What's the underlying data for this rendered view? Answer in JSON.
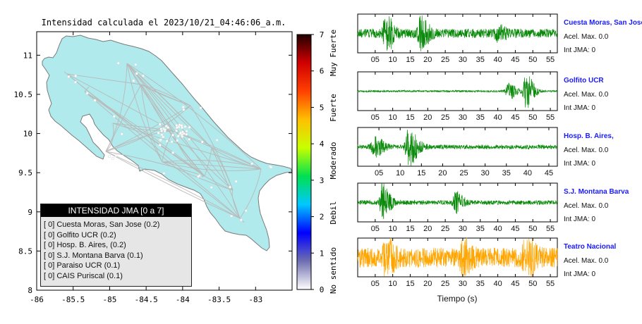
{
  "title": "Intensidad calculada el 2023/10/21_04:46:06_a.m.",
  "map": {
    "x_ticks": [
      "-86",
      "-85.5",
      "-85",
      "-84.5",
      "-84",
      "-83.5",
      "-83"
    ],
    "y_ticks": [
      "11",
      "10.5",
      "10",
      "9.5",
      "9",
      "8.5",
      "8"
    ],
    "xlim": [
      -86,
      -82.5
    ],
    "ylim": [
      8,
      11.3
    ],
    "land_color": "#b0eaec",
    "border_color": "#7a7a7a",
    "road_color": "#b9b9b9"
  },
  "legend": {
    "title": "INTENSIDAD JMA [0 a 7]",
    "items": [
      "[ 0]  Cuesta Moras, San Jose (0.2)",
      "[ 0]  Golfito UCR (0.2)",
      "[ 0]  Hosp. B. Aires, (0.2)",
      "[ 0]  S.J. Montana Barva (0.1)",
      "[ 0]  Paraiso UCR (0.1)",
      "[ 0]  CAIS Puriscal (0.1)"
    ]
  },
  "colorbar": {
    "ticks": [
      "0",
      "1",
      "2",
      "3",
      "4",
      "5",
      "6",
      "7"
    ],
    "category_labels": [
      "No sentido",
      "Debil",
      "Moderado",
      "Fuerte",
      "Muy Fuerte"
    ],
    "colors": [
      "#ffffff",
      "#6f6fb0",
      "#0000ff",
      "#00c8ff",
      "#00e050",
      "#c8ff00",
      "#ffc000",
      "#ff4000",
      "#d00000",
      "#200000"
    ]
  },
  "chart_data": [
    {
      "type": "line",
      "title": "Cuesta Moras, San Jose",
      "x_range": [
        0,
        57
      ],
      "x_ticks": [
        "05",
        "10",
        "15",
        "20",
        "25",
        "30",
        "35",
        "40",
        "45",
        "50",
        "55"
      ],
      "color": "#0a8a0a",
      "accel_label": "Acel. Max. 0.0",
      "jma_label": "Int JMA: 0"
    },
    {
      "type": "line",
      "title": "Golfito UCR",
      "x_range": [
        0,
        57
      ],
      "x_ticks": [
        "05",
        "10",
        "15",
        "20",
        "25",
        "30",
        "35",
        "40",
        "45",
        "50",
        "55"
      ],
      "color": "#0a8a0a",
      "accel_label": "Acel. Max. 0.0",
      "jma_label": "Int JMA: 0"
    },
    {
      "type": "line",
      "title": "Hosp. B. Aires,",
      "x_range": [
        0,
        47
      ],
      "x_ticks": [
        "05",
        "10",
        "15",
        "20",
        "25",
        "30",
        "35",
        "40",
        "45"
      ],
      "color": "#0a8a0a",
      "accel_label": "Acel. Max. 0.0",
      "jma_label": "Int JMA: 0"
    },
    {
      "type": "line",
      "title": "S.J. Montana Barva",
      "x_range": [
        0,
        57
      ],
      "x_ticks": [
        "05",
        "10",
        "15",
        "20",
        "25",
        "30",
        "35",
        "40",
        "45",
        "50",
        "55"
      ],
      "color": "#0a8a0a",
      "accel_label": "Acel. Max. 0.0",
      "jma_label": "Int JMA: 0"
    },
    {
      "type": "line",
      "title": "Teatro Nacional",
      "x_range": [
        0,
        57
      ],
      "x_ticks": [
        "05",
        "10",
        "15",
        "20",
        "25",
        "30",
        "35",
        "40",
        "45",
        "50",
        "55"
      ],
      "color": "#ffa500",
      "accel_label": "Acel. Max. 0.0",
      "jma_label": "Int JMA: 0",
      "xlabel": "Tiempo (s)"
    }
  ]
}
